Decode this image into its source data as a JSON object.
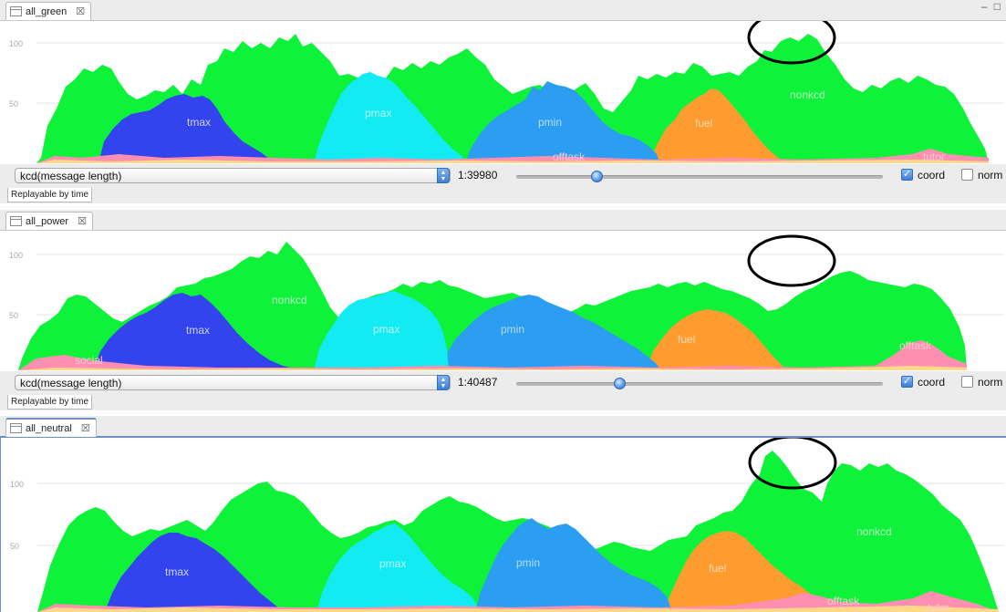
{
  "window_controls": "– □",
  "panels": [
    {
      "tab_label": "all_green",
      "close_glyph": "☒",
      "y_ticks": [
        "100",
        "50"
      ],
      "series_labels": {
        "tmax": "tmax",
        "pmax": "pmax",
        "pmin": "pmin",
        "fuel": "fuel",
        "nonkcd": "nonkcd",
        "offtask": "offtask",
        "tutor": "tutor"
      },
      "select_value": "kcd(message length)",
      "time": "1:39980",
      "slider_fraction": 0.22,
      "coord_label": "coord",
      "coord_checked": true,
      "norm_label": "norm",
      "norm_checked": false,
      "replay_label": "Replayable by time"
    },
    {
      "tab_label": "all_power",
      "close_glyph": "☒",
      "y_ticks": [
        "100",
        "50"
      ],
      "series_labels": {
        "nonkcd": "nonkcd",
        "tmax": "tmax",
        "pmax": "pmax",
        "pmin": "pmin",
        "fuel": "fuel",
        "offtask": "offtask",
        "social": "social"
      },
      "select_value": "kcd(message length)",
      "time": "1:40487",
      "slider_fraction": 0.28,
      "coord_label": "coord",
      "coord_checked": true,
      "norm_label": "norm",
      "norm_checked": false,
      "replay_label": "Replayable by time"
    },
    {
      "tab_label": "all_neutral",
      "close_glyph": "☒",
      "y_ticks": [
        "100",
        "50"
      ],
      "series_labels": {
        "tmax": "tmax",
        "pmax": "pmax",
        "pmin": "pmin",
        "fuel": "fuel",
        "nonkcd": "nonkcd",
        "offtask": "offtask",
        "tutor": "tutor"
      }
    }
  ],
  "colors": {
    "nonkcd": "#0ef33a",
    "tmax": "#3344ee",
    "pmax": "#12ebf2",
    "pmin": "#2c9ef2",
    "fuel": "#ff9c30",
    "offtask": "#ff8fb0",
    "bottom": "#ffd88a",
    "highlight_circle": "#000000",
    "tab_accent": "#6c8fc7"
  },
  "chart_data": [
    {
      "type": "area",
      "title": "all_green",
      "stacked_layers": [
        "bottom",
        "offtask",
        "tmax",
        "pmax",
        "pmin",
        "fuel",
        "nonkcd"
      ],
      "ylim": [
        0,
        110
      ]
    },
    {
      "type": "area",
      "title": "all_power",
      "stacked_layers": [
        "bottom",
        "offtask",
        "tmax",
        "pmax",
        "pmin",
        "fuel",
        "nonkcd"
      ],
      "ylim": [
        0,
        110
      ]
    },
    {
      "type": "area",
      "title": "all_neutral",
      "stacked_layers": [
        "bottom",
        "offtask",
        "tmax",
        "pmax",
        "pmin",
        "fuel",
        "nonkcd"
      ],
      "ylim": [
        0,
        110
      ]
    }
  ]
}
